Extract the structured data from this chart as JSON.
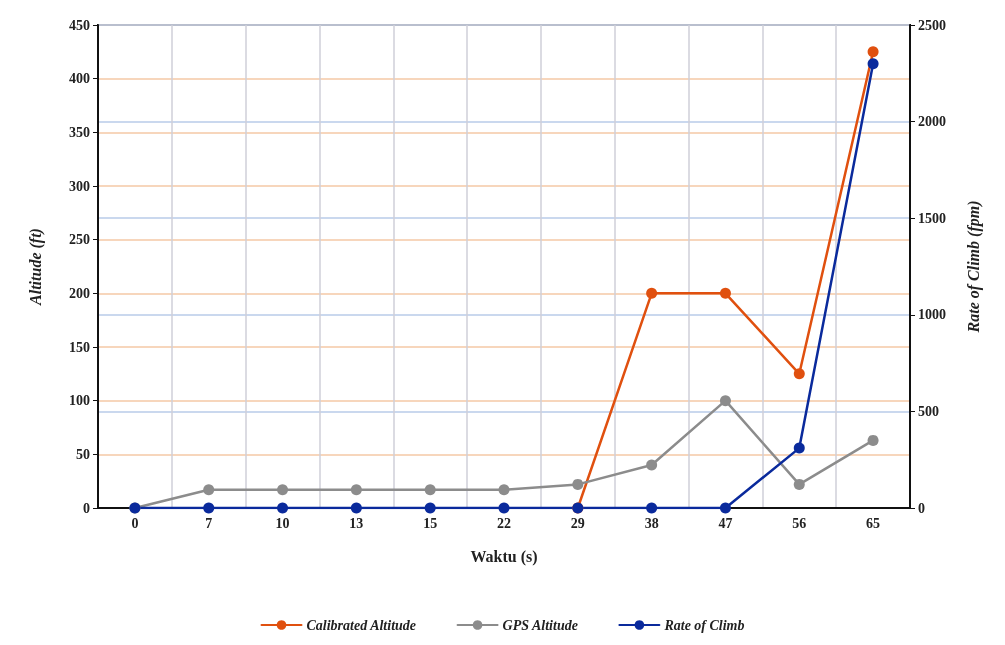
{
  "chart_data": {
    "type": "line",
    "xlabel": "Waktu (s)",
    "ylabel": "Altitude (ft)",
    "y2label": "Rate of Climb (fpm)",
    "categories": [
      "0",
      "7",
      "10",
      "13",
      "15",
      "22",
      "29",
      "38",
      "47",
      "56",
      "65"
    ],
    "series": [
      {
        "name": "Calibrated Altitude",
        "color": "#e0500f",
        "values": [
          null,
          null,
          null,
          null,
          null,
          null,
          0,
          200,
          200,
          125,
          425
        ]
      },
      {
        "name": "GPS Altitude",
        "color": "#8c8c8c",
        "values": [
          0,
          17,
          17,
          17,
          17,
          17,
          22,
          40,
          100,
          22,
          63
        ]
      },
      {
        "name": "Rate of Climb",
        "color": "#0a2a9c",
        "axis": "y2",
        "values": [
          0,
          0,
          0,
          0,
          0,
          0,
          0,
          0,
          0,
          310,
          2300
        ]
      }
    ],
    "ylim": [
      0,
      450
    ],
    "yticks": [
      0,
      50,
      100,
      150,
      200,
      250,
      300,
      350,
      400,
      450
    ],
    "y2lim": [
      0,
      2500
    ],
    "y2ticks": [
      0,
      500,
      1000,
      1500,
      2000,
      2500
    ],
    "grid": true,
    "legend": "bottom",
    "marker": "circle",
    "line_style": "solid"
  }
}
